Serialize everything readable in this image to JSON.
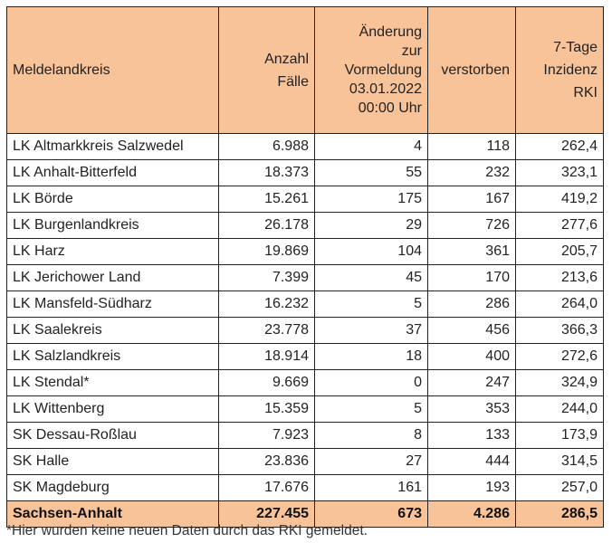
{
  "table": {
    "headers": {
      "district": [
        "Meldelandkreis"
      ],
      "cases": [
        "Anzahl",
        "Fälle"
      ],
      "change": [
        "Änderung",
        "zur",
        "Vormeldung",
        "03.01.2022",
        "00:00 Uhr"
      ],
      "deceased": [
        "verstorben"
      ],
      "incidence": [
        "7-Tage",
        "Inzidenz",
        "RKI"
      ]
    },
    "rows": [
      {
        "district": "LK Altmarkkreis Salzwedel",
        "cases": "6.988",
        "change": "4",
        "deceased": "118",
        "incidence": "262,4"
      },
      {
        "district": "LK Anhalt-Bitterfeld",
        "cases": "18.373",
        "change": "55",
        "deceased": "232",
        "incidence": "323,1"
      },
      {
        "district": "LK Börde",
        "cases": "15.261",
        "change": "175",
        "deceased": "167",
        "incidence": "419,2"
      },
      {
        "district": "LK Burgenlandkreis",
        "cases": "26.178",
        "change": "29",
        "deceased": "726",
        "incidence": "277,6"
      },
      {
        "district": "LK Harz",
        "cases": "19.869",
        "change": "104",
        "deceased": "361",
        "incidence": "205,7"
      },
      {
        "district": "LK Jerichower Land",
        "cases": "7.399",
        "change": "45",
        "deceased": "170",
        "incidence": "213,6"
      },
      {
        "district": "LK Mansfeld-Südharz",
        "cases": "16.232",
        "change": "5",
        "deceased": "286",
        "incidence": "264,0"
      },
      {
        "district": "LK Saalekreis",
        "cases": "23.778",
        "change": "37",
        "deceased": "456",
        "incidence": "366,3"
      },
      {
        "district": "LK Salzlandkreis",
        "cases": "18.914",
        "change": "18",
        "deceased": "400",
        "incidence": "272,6"
      },
      {
        "district": "LK Stendal*",
        "cases": "9.669",
        "change": "0",
        "deceased": "247",
        "incidence": "324,9"
      },
      {
        "district": "LK Wittenberg",
        "cases": "15.359",
        "change": "5",
        "deceased": "353",
        "incidence": "244,0"
      },
      {
        "district": "SK Dessau-Roßlau",
        "cases": "7.923",
        "change": "8",
        "deceased": "133",
        "incidence": "173,9"
      },
      {
        "district": "SK Halle",
        "cases": "23.836",
        "change": "27",
        "deceased": "444",
        "incidence": "314,5"
      },
      {
        "district": "SK Magdeburg",
        "cases": "17.676",
        "change": "161",
        "deceased": "193",
        "incidence": "257,0"
      }
    ],
    "total": {
      "district": "Sachsen-Anhalt",
      "cases": "227.455",
      "change": "673",
      "deceased": "4.286",
      "incidence": "286,5"
    }
  },
  "footnote": "*Hier wurden keine neuen Daten durch das RKI gemeldet.",
  "colors": {
    "header_background": "#f8c399",
    "total_background": "#f8c399",
    "border": "#222222"
  }
}
